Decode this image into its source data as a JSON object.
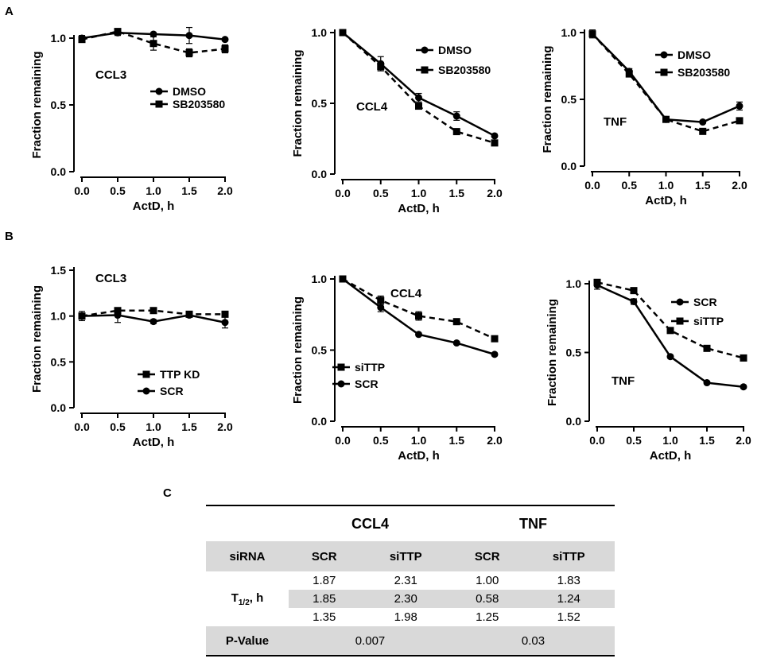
{
  "panel_labels": [
    "A",
    "B",
    "C"
  ],
  "chart_data": [
    {
      "panel": "A",
      "type": "line",
      "target": "CCL3",
      "title": "",
      "xlabel": "ActD, h",
      "ylabel": "Fraction remaining",
      "x": [
        0,
        0.5,
        1,
        1.5,
        2
      ],
      "xlim": [
        0,
        2
      ],
      "ylim": [
        0,
        1.0
      ],
      "xticks": [
        "0.0",
        "0.5",
        "1.0",
        "1.5",
        "2.0"
      ],
      "yticks": [
        "0.0",
        "0.5",
        "1.0"
      ],
      "legend_position": "center-right",
      "series": [
        {
          "name": "DMSO",
          "marker": "circle",
          "dash": false,
          "values": [
            1.0,
            1.04,
            1.03,
            1.02,
            0.99
          ],
          "err": [
            0.02,
            0.02,
            0.01,
            0.06,
            0.01
          ]
        },
        {
          "name": "SB203580",
          "marker": "square",
          "dash": true,
          "values": [
            0.99,
            1.05,
            0.96,
            0.89,
            0.92
          ],
          "err": [
            0.02,
            0.02,
            0.05,
            0.03,
            0.03
          ]
        }
      ]
    },
    {
      "panel": "A",
      "type": "line",
      "target": "CCL4",
      "title": "",
      "xlabel": "ActD, h",
      "ylabel": "Fraction remaining",
      "x": [
        0,
        0.5,
        1,
        1.5,
        2
      ],
      "xlim": [
        0,
        2
      ],
      "ylim": [
        0,
        1.0
      ],
      "xticks": [
        "0.0",
        "0.5",
        "1.0",
        "1.5",
        "2.0"
      ],
      "yticks": [
        "0.0",
        "0.5",
        "1.0"
      ],
      "legend_position": "top-right",
      "series": [
        {
          "name": "DMSO",
          "marker": "circle",
          "dash": false,
          "values": [
            1.0,
            0.78,
            0.54,
            0.41,
            0.27
          ],
          "err": [
            0.02,
            0.05,
            0.03,
            0.03,
            0.01
          ]
        },
        {
          "name": "SB203580",
          "marker": "square",
          "dash": true,
          "values": [
            1.0,
            0.76,
            0.48,
            0.3,
            0.22
          ],
          "err": [
            0.02,
            0.03,
            0.02,
            0.01,
            0.01
          ]
        }
      ]
    },
    {
      "panel": "A",
      "type": "line",
      "target": "TNF",
      "title": "",
      "xlabel": "ActD, h",
      "ylabel": "Fraction remaining",
      "x": [
        0,
        0.5,
        1,
        1.5,
        2
      ],
      "xlim": [
        0,
        2
      ],
      "ylim": [
        0,
        1.0
      ],
      "xticks": [
        "0.0",
        "0.5",
        "1.0",
        "1.5",
        "2.0"
      ],
      "yticks": [
        "0.0",
        "0.5",
        "1.0"
      ],
      "legend_position": "top-right",
      "series": [
        {
          "name": "DMSO",
          "marker": "circle",
          "dash": false,
          "values": [
            0.99,
            0.71,
            0.35,
            0.33,
            0.45
          ],
          "err": [
            0.03,
            0.02,
            0.02,
            0.01,
            0.03
          ]
        },
        {
          "name": "SB203580",
          "marker": "square",
          "dash": true,
          "values": [
            0.99,
            0.69,
            0.35,
            0.26,
            0.34
          ],
          "err": [
            0.02,
            0.02,
            0.01,
            0.01,
            0.01
          ]
        }
      ]
    },
    {
      "panel": "B",
      "type": "line",
      "target": "CCL3",
      "title": "",
      "xlabel": "ActD, h",
      "ylabel": "Fraction remaining",
      "x": [
        0,
        0.5,
        1,
        1.5,
        2
      ],
      "xlim": [
        0,
        2
      ],
      "ylim": [
        0,
        1.5
      ],
      "xticks": [
        "0.0",
        "0.5",
        "1.0",
        "1.5",
        "2.0"
      ],
      "yticks": [
        "0.0",
        "0.5",
        "1.0",
        "1.5"
      ],
      "legend_position": "bottom-center",
      "series": [
        {
          "name": "TTP KD",
          "marker": "square",
          "dash": true,
          "values": [
            1.0,
            1.06,
            1.06,
            1.02,
            1.02
          ],
          "err": [
            0.03,
            0.02,
            0.02,
            0.01,
            0.02
          ]
        },
        {
          "name": "SCR",
          "marker": "circle",
          "dash": false,
          "values": [
            1.0,
            1.01,
            0.94,
            1.01,
            0.93
          ],
          "err": [
            0.05,
            0.08,
            0.02,
            0.01,
            0.06
          ]
        }
      ]
    },
    {
      "panel": "B",
      "type": "line",
      "target": "CCL4",
      "title": "",
      "xlabel": "ActD, h",
      "ylabel": "Fraction remaining",
      "x": [
        0,
        0.5,
        1,
        1.5,
        2
      ],
      "xlim": [
        0,
        2
      ],
      "ylim": [
        0,
        1.0
      ],
      "xticks": [
        "0.0",
        "0.5",
        "1.0",
        "1.5",
        "2.0"
      ],
      "yticks": [
        "0.0",
        "0.5",
        "1.0"
      ],
      "legend_position": "bottom-left",
      "series": [
        {
          "name": "siTTP",
          "marker": "square",
          "dash": true,
          "values": [
            1.0,
            0.85,
            0.74,
            0.7,
            0.58
          ],
          "err": [
            0.02,
            0.03,
            0.03,
            0.01,
            0.01
          ]
        },
        {
          "name": "SCR",
          "marker": "circle",
          "dash": false,
          "values": [
            1.0,
            0.8,
            0.61,
            0.55,
            0.47
          ],
          "err": [
            0.02,
            0.03,
            0.01,
            0.01,
            0.01
          ]
        }
      ]
    },
    {
      "panel": "B",
      "type": "line",
      "target": "TNF",
      "title": "",
      "xlabel": "ActD, h",
      "ylabel": "Fraction remaining",
      "x": [
        0,
        0.5,
        1,
        1.5,
        2
      ],
      "xlim": [
        0,
        2
      ],
      "ylim": [
        0,
        1.0
      ],
      "xticks": [
        "0.0",
        "0.5",
        "1.0",
        "1.5",
        "2.0"
      ],
      "yticks": [
        "0.0",
        "0.5",
        "1.0"
      ],
      "legend_position": "top-right",
      "series": [
        {
          "name": "SCR",
          "marker": "circle",
          "dash": false,
          "values": [
            0.99,
            0.87,
            0.47,
            0.28,
            0.25
          ],
          "err": [
            0.03,
            0.02,
            0.01,
            0.01,
            0.01
          ]
        },
        {
          "name": "siTTP",
          "marker": "square",
          "dash": true,
          "values": [
            1.01,
            0.95,
            0.66,
            0.53,
            0.46
          ],
          "err": [
            0.02,
            0.01,
            0.01,
            0.01,
            0.01
          ]
        }
      ]
    },
    {
      "panel": "C",
      "type": "table",
      "gene_headers": [
        "CCL4",
        "TNF"
      ],
      "header": [
        "siRNA",
        "SCR",
        "siTTP",
        "SCR",
        "siTTP"
      ],
      "row_label_main": "T",
      "row_label_sub": "1/2",
      "row_label_suffix": ", h",
      "rows": [
        [
          "1.87",
          "2.31",
          "1.00",
          "1.83"
        ],
        [
          "1.85",
          "2.30",
          "0.58",
          "1.24"
        ],
        [
          "1.35",
          "1.98",
          "1.25",
          "1.52"
        ]
      ],
      "pvalue_label": "P-Value",
      "pvalues": [
        "0.007",
        "0.03"
      ]
    }
  ]
}
